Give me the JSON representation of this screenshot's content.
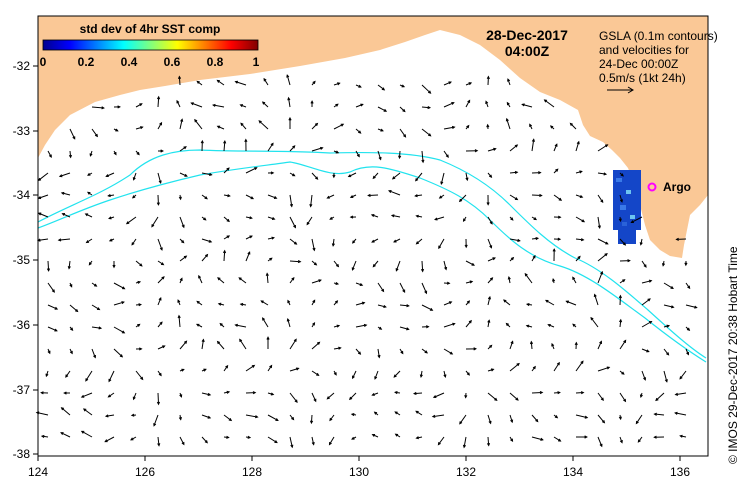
{
  "colorbar": {
    "title": "std dev of 4hr SST comp",
    "ticks": [
      "0",
      "0.2",
      "0.4",
      "0.6",
      "0.8",
      "1"
    ]
  },
  "header": {
    "date": "28-Dec-2017",
    "time": "04:00Z"
  },
  "legend": {
    "line1": "GSLA (0.1m contours)",
    "line2": "and velocities for",
    "line3": "24-Dec 00:00Z",
    "line4": "0.5m/s (1kt 24h)"
  },
  "argo": {
    "label": "Argo",
    "color": "#ff00ff"
  },
  "axes": {
    "x_ticks": [
      "124",
      "126",
      "128",
      "130",
      "132",
      "134",
      "136"
    ],
    "y_ticks": [
      "-32",
      "-33",
      "-34",
      "-35",
      "-36",
      "-37",
      "-38"
    ]
  },
  "credit": "© IMOS 29-Dec-2017 20:38 Hobart Time",
  "colors": {
    "land": "#fac896",
    "contour": "#22e3ee",
    "sst_patch": "#1446c8"
  }
}
